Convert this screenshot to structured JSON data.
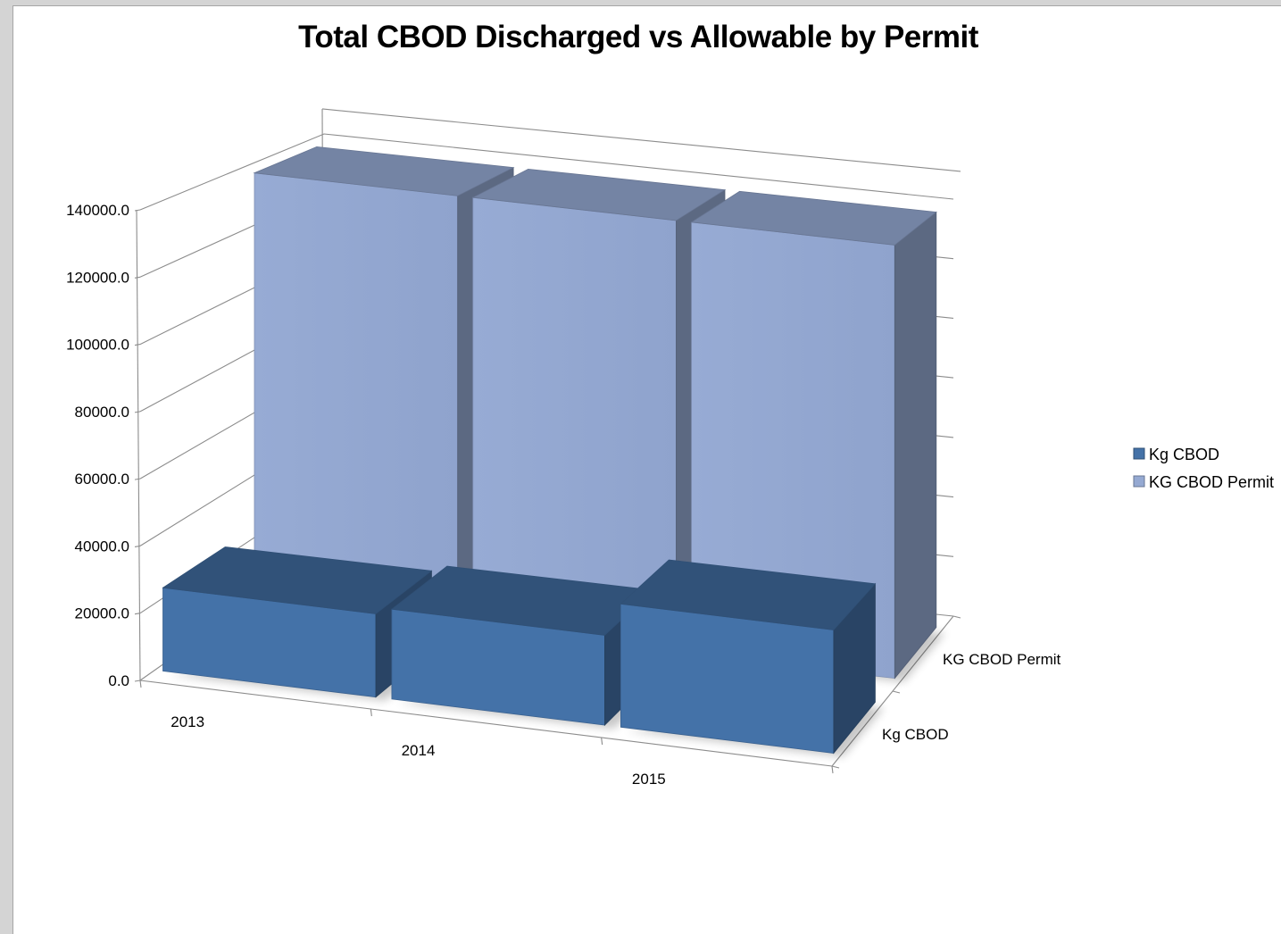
{
  "chart_data": {
    "type": "bar",
    "title": "Total CBOD Discharged vs Allowable by Permit",
    "categories": [
      "2013",
      "2014",
      "2015"
    ],
    "series": [
      {
        "name": "Kg CBOD",
        "values": [
          25000,
          27000,
          37000
        ],
        "color": "#4472a8"
      },
      {
        "name": "KG CBOD Permit",
        "values": [
          138000,
          138000,
          138000
        ],
        "color": "#95a9d2"
      }
    ],
    "y_ticks": [
      "0.0",
      "20000.0",
      "40000.0",
      "60000.0",
      "80000.0",
      "100000.0",
      "120000.0",
      "140000.0"
    ],
    "depth_labels": [
      "Kg CBOD",
      "KG CBOD Permit"
    ],
    "ylim": [
      0,
      140000
    ],
    "grid": true,
    "legend_position": "right",
    "style": "3d-column"
  }
}
